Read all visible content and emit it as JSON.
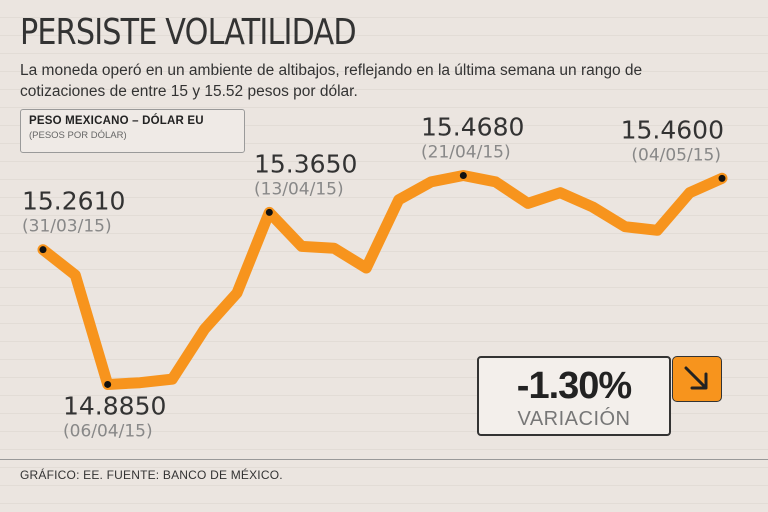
{
  "header": {
    "title": "PERSISTE VOLATILIDAD",
    "subtitle": "La moneda operó en un ambiente de altibajos, reflejando en la última semana un rango de cotizaciones de entre 15 y 15.52 pesos por dólar."
  },
  "legend": {
    "title": "PESO MEXICANO – DÓLAR EU",
    "subtitle": "(PESOS POR DÓLAR)"
  },
  "variation": {
    "value": "-1.30%",
    "label": "VARIACIÓN",
    "arrow_icon": "arrow-down-right-icon"
  },
  "footer": {
    "source": "GRÁFICO: EE. FUENTE: BANCO DE MÉXICO."
  },
  "colors": {
    "line": "#f7941d",
    "text": "#333333",
    "marker": "#111111"
  },
  "chart_data": {
    "type": "line",
    "title": "PERSISTE VOLATILIDAD",
    "xlabel": "",
    "ylabel": "Pesos por dólar",
    "ylim": [
      14.85,
      15.5
    ],
    "grid": true,
    "legend": "top-left",
    "values": [
      15.261,
      15.19,
      14.885,
      14.89,
      14.9,
      15.04,
      15.14,
      15.365,
      15.27,
      15.265,
      15.21,
      15.4,
      15.45,
      15.468,
      15.45,
      15.39,
      15.42,
      15.38,
      15.325,
      15.315,
      15.42,
      15.46
    ],
    "annotations": [
      {
        "index": 0,
        "value": "15.2610",
        "date": "(31/03/15)",
        "placement": "above"
      },
      {
        "index": 2,
        "value": "14.8850",
        "date": "(06/04/15)",
        "placement": "below"
      },
      {
        "index": 7,
        "value": "15.3650",
        "date": "(13/04/15)",
        "placement": "above"
      },
      {
        "index": 13,
        "value": "15.4680",
        "date": "(21/04/15)",
        "placement": "above"
      },
      {
        "index": 21,
        "value": "15.4600",
        "date": "(04/05/15)",
        "placement": "above-left"
      }
    ]
  }
}
